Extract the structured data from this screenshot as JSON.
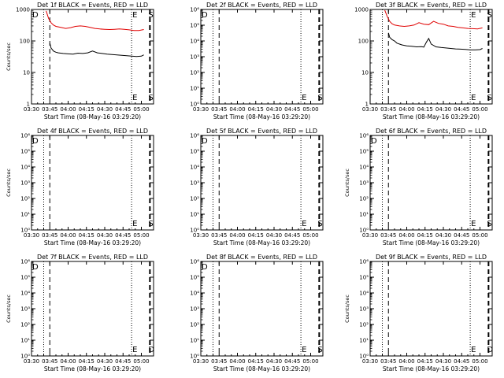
{
  "chart_data": [
    {
      "type": "line",
      "title": "Det 1f BLACK = Events, RED = LLD",
      "xlabel": "Start Time (08-May-16 03:29:20)",
      "ylabel": "Counts/sec",
      "yscale": "log",
      "ylim": [
        1,
        1000
      ],
      "yticks": [
        "1",
        "10",
        "100",
        "1000"
      ],
      "xticks": [
        "03:30",
        "03:45",
        "04:00",
        "04:15",
        "04:30",
        "04:45",
        "05:00"
      ],
      "xlim_minutes": [
        0,
        100
      ],
      "markers": [
        {
          "label": "D",
          "minute": 0
        },
        {
          "label": "E",
          "minute": 82
        },
        {
          "label": "S",
          "minute": 97
        }
      ],
      "series": [
        {
          "color": "#e00000",
          "x": [
            12,
            14,
            16,
            18,
            20,
            24,
            28,
            32,
            36,
            40,
            44,
            48,
            52,
            56,
            60,
            64,
            68,
            72,
            76,
            80,
            84,
            88,
            92
          ],
          "y": [
            900,
            520,
            380,
            320,
            290,
            270,
            250,
            265,
            290,
            300,
            290,
            270,
            250,
            240,
            235,
            230,
            235,
            240,
            235,
            225,
            215,
            215,
            230
          ]
        },
        {
          "color": "#000000",
          "x": [
            15,
            16,
            18,
            20,
            22,
            26,
            30,
            34,
            38,
            42,
            46,
            50,
            54,
            58,
            62,
            66,
            70,
            74,
            78,
            82,
            86,
            90,
            92
          ],
          "y": [
            85,
            60,
            48,
            44,
            42,
            40,
            39,
            38,
            41,
            40,
            42,
            48,
            42,
            40,
            38,
            37,
            36,
            35,
            34,
            33,
            32,
            33,
            36
          ]
        }
      ]
    },
    {
      "type": "line",
      "title": "Det 2f BLACK = Events, RED = LLD",
      "xlabel": "Start Time (08-May-16 03:29:20)",
      "ylabel": "",
      "yscale": "log",
      "ylim": [
        1,
        1000000
      ],
      "yticks": [
        "10⁰",
        "10¹",
        "10²",
        "10³",
        "10⁴",
        "10⁵",
        "10⁶"
      ],
      "xticks": [
        "03:30",
        "03:45",
        "04:00",
        "04:15",
        "04:30",
        "04:45",
        "05:00"
      ],
      "xlim_minutes": [
        0,
        100
      ],
      "markers": [
        {
          "label": "D",
          "minute": 0
        },
        {
          "label": "E",
          "minute": 82
        },
        {
          "label": "S",
          "minute": 97
        }
      ],
      "series": []
    },
    {
      "type": "line",
      "title": "Det 3f BLACK = Events, RED = LLD",
      "xlabel": "Start Time (08-May-16 03:29:20)",
      "ylabel": "",
      "yscale": "log",
      "ylim": [
        1,
        1000
      ],
      "yticks": [
        "1",
        "10",
        "100",
        "1000"
      ],
      "xticks": [
        "03:30",
        "03:45",
        "04:00",
        "04:15",
        "04:30",
        "04:45",
        "05:00"
      ],
      "xlim_minutes": [
        0,
        100
      ],
      "markers": [
        {
          "label": "E",
          "minute": 82
        },
        {
          "label": "S",
          "minute": 97
        }
      ],
      "series": [
        {
          "color": "#e00000",
          "x": [
            12,
            14,
            16,
            18,
            20,
            24,
            28,
            32,
            36,
            40,
            44,
            48,
            52,
            56,
            60,
            64,
            68,
            72,
            76,
            80,
            84,
            88,
            92
          ],
          "y": [
            950,
            600,
            420,
            350,
            320,
            300,
            290,
            300,
            320,
            380,
            340,
            330,
            420,
            360,
            340,
            300,
            290,
            270,
            260,
            250,
            245,
            240,
            260
          ]
        },
        {
          "color": "#000000",
          "x": [
            15,
            16,
            18,
            20,
            22,
            26,
            30,
            34,
            38,
            42,
            44,
            46,
            48,
            50,
            54,
            58,
            62,
            66,
            70,
            74,
            78,
            82,
            86,
            90,
            92
          ],
          "y": [
            180,
            130,
            110,
            100,
            85,
            75,
            70,
            68,
            65,
            66,
            64,
            90,
            120,
            80,
            65,
            62,
            60,
            58,
            56,
            55,
            54,
            52,
            52,
            53,
            58
          ]
        }
      ]
    },
    {
      "type": "line",
      "title": "Det 4f BLACK = Events, RED = LLD",
      "xlabel": "Start Time (08-May-16 03:29:20)",
      "ylabel": "Counts/sec",
      "yscale": "log",
      "ylim": [
        1,
        1000000
      ],
      "yticks": [
        "10⁰",
        "10¹",
        "10²",
        "10³",
        "10⁴",
        "10⁵",
        "10⁶"
      ],
      "xticks": [
        "03:30",
        "03:45",
        "04:00",
        "04:15",
        "04:30",
        "04:45",
        "05:00"
      ],
      "xlim_minutes": [
        0,
        100
      ],
      "markers": [
        {
          "label": "D",
          "minute": 0
        },
        {
          "label": "E",
          "minute": 82
        },
        {
          "label": "S",
          "minute": 97
        }
      ],
      "series": []
    },
    {
      "type": "line",
      "title": "Det 5f BLACK = Events, RED = LLD",
      "xlabel": "Start Time (08-May-16 03:29:20)",
      "ylabel": "",
      "yscale": "log",
      "ylim": [
        1,
        1000000
      ],
      "yticks": [
        "10⁰",
        "10¹",
        "10²",
        "10³",
        "10⁴",
        "10⁵",
        "10⁶"
      ],
      "xticks": [
        "03:30",
        "03:45",
        "04:00",
        "04:15",
        "04:30",
        "04:45",
        "05:00"
      ],
      "xlim_minutes": [
        0,
        100
      ],
      "markers": [
        {
          "label": "D",
          "minute": 0
        },
        {
          "label": "E",
          "minute": 82
        },
        {
          "label": "S",
          "minute": 97
        }
      ],
      "series": []
    },
    {
      "type": "line",
      "title": "Det 6f BLACK = Events, RED = LLD",
      "xlabel": "Start Time (08-May-16 03:29:20)",
      "ylabel": "Counts/sec",
      "yscale": "log",
      "ylim": [
        1,
        1000000
      ],
      "yticks": [
        "10⁰",
        "10¹",
        "10²",
        "10³",
        "10⁴",
        "10⁵",
        "10⁶"
      ],
      "xticks": [
        "03:30",
        "03:45",
        "04:00",
        "04:15",
        "04:30",
        "04:45",
        "05:00"
      ],
      "xlim_minutes": [
        0,
        100
      ],
      "markers": [
        {
          "label": "D",
          "minute": 0
        },
        {
          "label": "E",
          "minute": 82
        },
        {
          "label": "S",
          "minute": 97
        }
      ],
      "series": []
    },
    {
      "type": "line",
      "title": "Det 7f BLACK = Events, RED = LLD",
      "xlabel": "Start Time (08-May-16 03:29:20)",
      "ylabel": "Counts/sec",
      "yscale": "log",
      "ylim": [
        1,
        1000000
      ],
      "yticks": [
        "10⁰",
        "10¹",
        "10²",
        "10³",
        "10⁴",
        "10⁵",
        "10⁶"
      ],
      "xticks": [
        "03:30",
        "03:45",
        "04:00",
        "04:15",
        "04:30",
        "04:45",
        "05:00"
      ],
      "xlim_minutes": [
        0,
        100
      ],
      "markers": [
        {
          "label": "D",
          "minute": 0
        },
        {
          "label": "E",
          "minute": 82
        },
        {
          "label": "D",
          "minute": 97
        }
      ],
      "series": []
    },
    {
      "type": "line",
      "title": "Det 8f BLACK = Events, RED = LLD",
      "xlabel": "Start Time (08-May-16 03:29:20)",
      "ylabel": "",
      "yscale": "log",
      "ylim": [
        1,
        1000000
      ],
      "yticks": [
        "10⁰",
        "10¹",
        "10²",
        "10³",
        "10⁴",
        "10⁵",
        "10⁶"
      ],
      "xticks": [
        "03:30",
        "03:45",
        "04:00",
        "04:15",
        "04:30",
        "04:45",
        "05:00"
      ],
      "xlim_minutes": [
        0,
        100
      ],
      "markers": [
        {
          "label": "D",
          "minute": 0
        },
        {
          "label": "E",
          "minute": 82
        },
        {
          "label": "S",
          "minute": 97
        }
      ],
      "series": []
    },
    {
      "type": "line",
      "title": "Det 9f BLACK = Events, RED = LLD",
      "xlabel": "Start Time (08-May-16 03:29:20)",
      "ylabel": "Counts/sec",
      "yscale": "log",
      "ylim": [
        1,
        1000000
      ],
      "yticks": [
        "10⁰",
        "10¹",
        "10²",
        "10³",
        "10⁴",
        "10⁵",
        "10⁶"
      ],
      "xticks": [
        "03:30",
        "03:45",
        "04:00",
        "04:15",
        "04:30",
        "04:45",
        "05:00"
      ],
      "xlim_minutes": [
        0,
        100
      ],
      "markers": [
        {
          "label": "E",
          "minute": 82
        },
        {
          "label": "D",
          "minute": 97
        }
      ],
      "series": []
    }
  ],
  "vlines": {
    "dotted_minutes": [
      10,
      82
    ],
    "dashed_minutes": [
      15,
      97
    ]
  }
}
